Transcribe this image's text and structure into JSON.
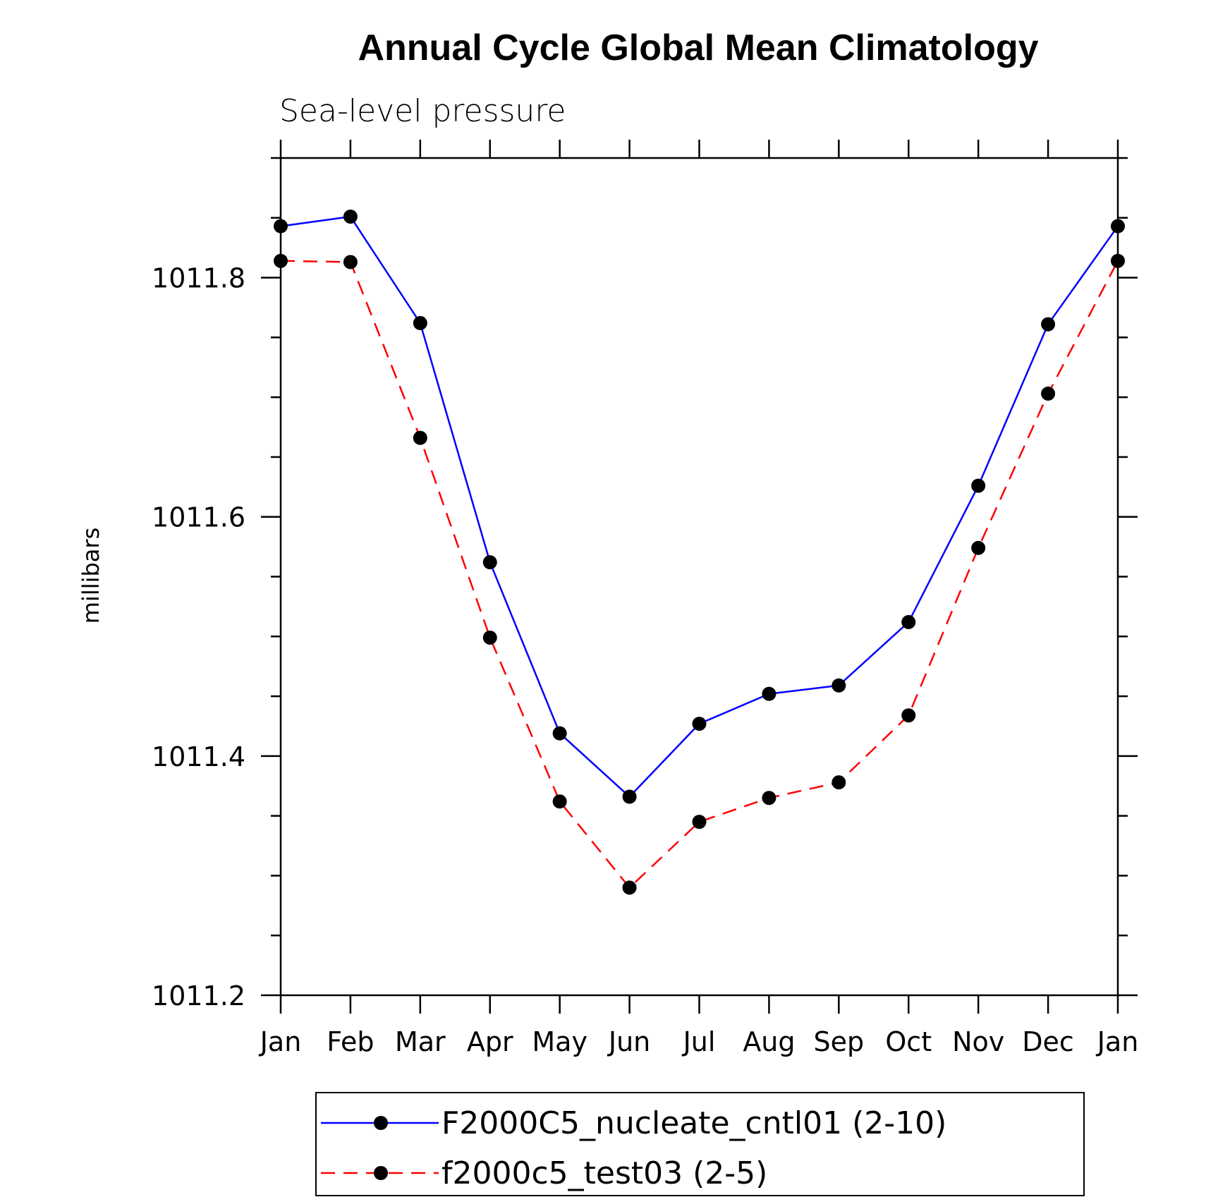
{
  "chart_data": {
    "type": "line",
    "title": "Annual Cycle Global Mean Climatology",
    "subtitle": "Sea-level pressure",
    "xlabel": "",
    "ylabel": "millibars",
    "categories": [
      "Jan",
      "Feb",
      "Mar",
      "Apr",
      "May",
      "Jun",
      "Jul",
      "Aug",
      "Sep",
      "Oct",
      "Nov",
      "Dec",
      "Jan"
    ],
    "ylim": [
      1011.2,
      1011.9
    ],
    "yticks": [
      "1011.2",
      "1011.4",
      "1011.6",
      "1011.8"
    ],
    "series": [
      {
        "name": "F2000C5_nucleate_cntl01 (2-10)",
        "color": "#0000ff",
        "style": "solid",
        "values": [
          1011.843,
          1011.851,
          1011.762,
          1011.562,
          1011.419,
          1011.366,
          1011.427,
          1011.452,
          1011.459,
          1011.512,
          1011.626,
          1011.761,
          1011.843
        ]
      },
      {
        "name": "f2000c5_test03 (2-5)",
        "color": "#ff0000",
        "style": "dashed",
        "values": [
          1011.814,
          1011.813,
          1011.666,
          1011.499,
          1011.362,
          1011.29,
          1011.345,
          1011.365,
          1011.378,
          1011.434,
          1011.574,
          1011.703,
          1011.814
        ]
      }
    ],
    "legend_position": "bottom",
    "marker": "filled-circle",
    "marker_color": "#000000",
    "grid": false
  }
}
